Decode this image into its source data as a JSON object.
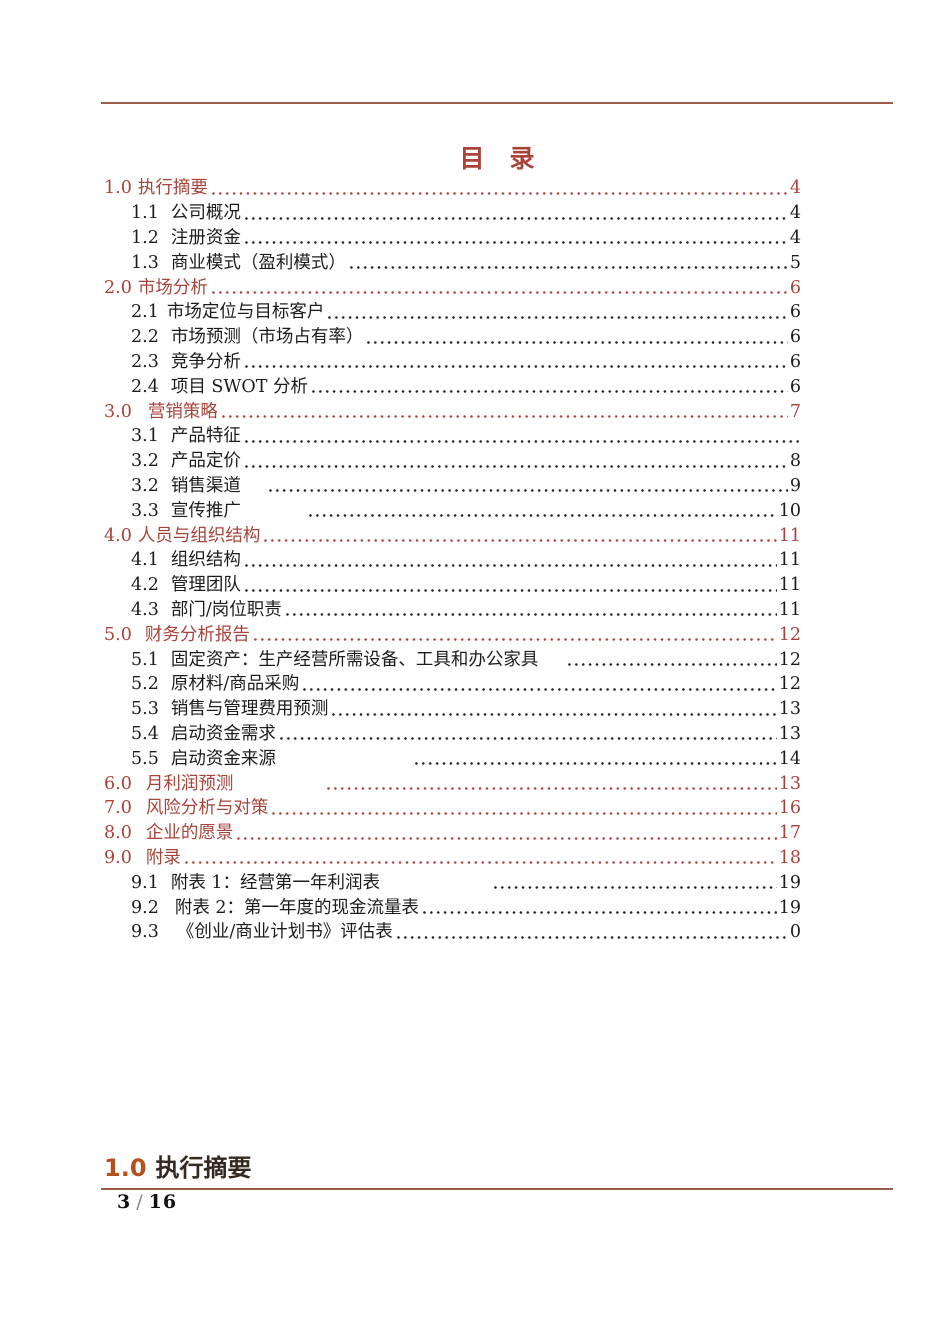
{
  "document": {
    "toc_title": "目　录",
    "section_heading": {
      "number": "1.0",
      "label": "执行摘要"
    },
    "footer": {
      "current": "3",
      "separator": "/",
      "total": "16"
    }
  },
  "colors": {
    "accent": "#a8433a",
    "rule": "#9b5c49",
    "heading_number": "#b5511f",
    "heading_text": "#33291f",
    "body_text": "#1c1c1c"
  },
  "toc_entries": [
    {
      "num": "1.0",
      "label": "执行摘要",
      "page": "4",
      "level": 1,
      "num_gap": 6,
      "pre_gap": 0
    },
    {
      "num": "1.1",
      "label": "公司概况",
      "page": "4",
      "level": 2,
      "num_gap": 12,
      "pre_gap": 0
    },
    {
      "num": "1.2",
      "label": "注册资金",
      "page": "4",
      "level": 2,
      "num_gap": 12,
      "pre_gap": 0
    },
    {
      "num": "1.3",
      "label": "商业模式（盈利模式）",
      "page": "5",
      "level": 2,
      "num_gap": 12,
      "pre_gap": 0
    },
    {
      "num": "2.0",
      "label": "市场分析",
      "page": "6",
      "level": 1,
      "num_gap": 6,
      "pre_gap": 0
    },
    {
      "num": "2.1",
      "label": "市场定位与目标客户",
      "page": "6",
      "level": 2,
      "num_gap": 8,
      "pre_gap": 0
    },
    {
      "num": "2.2",
      "label": "市场预测（市场占有率）",
      "page": "6",
      "level": 2,
      "num_gap": 12,
      "pre_gap": 0
    },
    {
      "num": "2.3",
      "label": "竞争分析",
      "page": "6",
      "level": 2,
      "num_gap": 12,
      "pre_gap": 0
    },
    {
      "num": "2.4",
      "label": "项目 SWOT 分析",
      "page": "6",
      "level": 2,
      "num_gap": 12,
      "pre_gap": 0
    },
    {
      "num": "3.0",
      "label": "营销策略",
      "page": "7",
      "level": 1,
      "num_gap": 16,
      "pre_gap": 0
    },
    {
      "num": "3.1",
      "label": "产品特征",
      "page": "",
      "level": 2,
      "num_gap": 12,
      "pre_gap": 0
    },
    {
      "num": "3.2",
      "label": "产品定价",
      "page": "8",
      "level": 2,
      "num_gap": 12,
      "pre_gap": 0
    },
    {
      "num": "3.2",
      "label": "销售渠道",
      "page": "9",
      "level": 2,
      "num_gap": 12,
      "pre_gap": 24
    },
    {
      "num": "3.3",
      "label": "宣传推广",
      "page": "10",
      "level": 2,
      "num_gap": 12,
      "pre_gap": 64
    },
    {
      "num": "4.0",
      "label": "人员与组织结构",
      "page": "11",
      "level": 1,
      "num_gap": 6,
      "pre_gap": 0
    },
    {
      "num": "4.1",
      "label": "组织结构",
      "page": "11",
      "level": 2,
      "num_gap": 12,
      "pre_gap": 0
    },
    {
      "num": "4.2",
      "label": "管理团队",
      "page": "11",
      "level": 2,
      "num_gap": 12,
      "pre_gap": 0
    },
    {
      "num": "4.3",
      "label": "部门/岗位职责",
      "page": "11",
      "level": 2,
      "num_gap": 12,
      "pre_gap": 0
    },
    {
      "num": "5.0",
      "label": "财务分析报告",
      "page": "12",
      "level": 1,
      "num_gap": 13,
      "pre_gap": 0
    },
    {
      "num": "5.1",
      "label": "固定资产：生产经营所需设备、工具和办公家具",
      "page": "12",
      "level": 2,
      "num_gap": 12,
      "pre_gap": 26
    },
    {
      "num": "5.2",
      "label": "原材料/商品采购",
      "page": "12",
      "level": 2,
      "num_gap": 12,
      "pre_gap": 0
    },
    {
      "num": "5.3",
      "label": "销售与管理费用预测",
      "page": "13",
      "level": 2,
      "num_gap": 12,
      "pre_gap": 0
    },
    {
      "num": "5.4",
      "label": "启动资金需求",
      "page": "13",
      "level": 2,
      "num_gap": 12,
      "pre_gap": 0
    },
    {
      "num": "5.5",
      "label": "启动资金来源",
      "page": "14",
      "level": 2,
      "num_gap": 12,
      "pre_gap": 135
    },
    {
      "num": "6.0",
      "label": "月利润预测",
      "page": "13",
      "level": 1,
      "num_gap": 14,
      "pre_gap": 90
    },
    {
      "num": "7.0",
      "label": "风险分析与对策",
      "page": "16",
      "level": 1,
      "num_gap": 14,
      "pre_gap": 0
    },
    {
      "num": "8.0",
      "label": "企业的愿景",
      "page": "17",
      "level": 1,
      "num_gap": 14,
      "pre_gap": 0
    },
    {
      "num": "9.0",
      "label": "附录",
      "page": "18",
      "level": 1,
      "num_gap": 14,
      "pre_gap": 0
    },
    {
      "num": "9.1",
      "label": "附表 1：经营第一年利润表",
      "page": "19",
      "level": 2,
      "num_gap": 12,
      "pre_gap": 110
    },
    {
      "num": "9.2",
      "label": "附表 2：第一年度的现金流量表",
      "page": "19",
      "level": 2,
      "num_gap": 16,
      "pre_gap": 0
    },
    {
      "num": "9.3",
      "label": "《创业/商业计划书》评估表",
      "page": "0",
      "level": 2,
      "num_gap": 18,
      "pre_gap": 0
    }
  ]
}
